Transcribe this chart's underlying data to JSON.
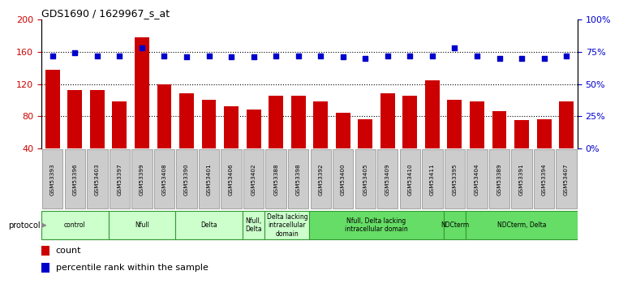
{
  "title": "GDS1690 / 1629967_s_at",
  "samples": [
    "GSM53393",
    "GSM53396",
    "GSM53403",
    "GSM53397",
    "GSM53399",
    "GSM53408",
    "GSM53390",
    "GSM53401",
    "GSM53406",
    "GSM53402",
    "GSM53388",
    "GSM53398",
    "GSM53392",
    "GSM53400",
    "GSM53405",
    "GSM53409",
    "GSM53410",
    "GSM53411",
    "GSM53395",
    "GSM53404",
    "GSM53389",
    "GSM53391",
    "GSM53394",
    "GSM53407"
  ],
  "counts": [
    138,
    112,
    112,
    98,
    178,
    120,
    108,
    100,
    92,
    88,
    105,
    105,
    98,
    84,
    76,
    108,
    105,
    125,
    100,
    98,
    86,
    75,
    76,
    98
  ],
  "percentiles": [
    72,
    74,
    72,
    72,
    78,
    72,
    71,
    72,
    71,
    71,
    72,
    72,
    72,
    71,
    70,
    72,
    72,
    72,
    78,
    72,
    70,
    70,
    70,
    72
  ],
  "ylim_left": [
    40,
    200
  ],
  "ylim_right": [
    0,
    100
  ],
  "yticks_left": [
    40,
    80,
    120,
    160,
    200
  ],
  "yticks_right": [
    0,
    25,
    50,
    75,
    100
  ],
  "bar_color": "#CC0000",
  "dot_color": "#0000CC",
  "grid_lines": [
    80,
    120,
    160
  ],
  "protocol_groups": [
    {
      "label": "control",
      "start": 0,
      "end": 3,
      "color": "#ccffcc"
    },
    {
      "label": "Nfull",
      "start": 3,
      "end": 6,
      "color": "#ccffcc"
    },
    {
      "label": "Delta",
      "start": 6,
      "end": 9,
      "color": "#ccffcc"
    },
    {
      "label": "Nfull,\nDelta",
      "start": 9,
      "end": 10,
      "color": "#ccffcc"
    },
    {
      "label": "Delta lacking\nintracellular\ndomain",
      "start": 10,
      "end": 12,
      "color": "#ccffcc"
    },
    {
      "label": "Nfull, Delta lacking\nintracellular domain",
      "start": 12,
      "end": 18,
      "color": "#66dd66"
    },
    {
      "label": "NDCterm",
      "start": 18,
      "end": 19,
      "color": "#66dd66"
    },
    {
      "label": "NDCterm, Delta",
      "start": 19,
      "end": 24,
      "color": "#66dd66"
    }
  ],
  "left_tick_color": "#CC0000",
  "right_tick_color": "#0000CC",
  "bg_color": "#ffffff",
  "sample_box_color": "#cccccc",
  "sample_box_edge": "#888888",
  "protocol_border_color": "#339933",
  "protocol_text_color": "#000000",
  "legend_count_color": "#CC0000",
  "legend_pct_color": "#0000CC"
}
